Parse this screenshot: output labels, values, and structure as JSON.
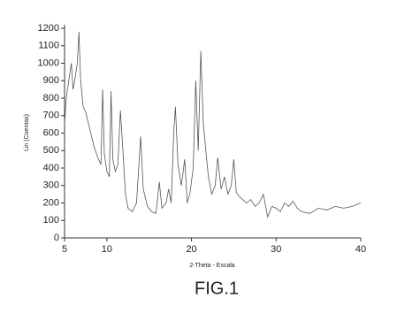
{
  "chart_data": {
    "type": "line",
    "x_label": "2-Theta - Escala",
    "y_label": "Lin (Cuentas)",
    "caption": "FIG.1",
    "xlim": [
      5,
      40
    ],
    "xticks": [
      5,
      10,
      20,
      30,
      40
    ],
    "ylim": [
      0,
      1200
    ],
    "yticks": [
      0,
      100,
      200,
      300,
      400,
      500,
      600,
      700,
      800,
      900,
      1000,
      1100,
      1200
    ],
    "color": "#555555",
    "x": [
      5.0,
      5.2,
      5.5,
      5.8,
      6.0,
      6.2,
      6.5,
      6.7,
      6.9,
      7.2,
      7.5,
      8.0,
      8.5,
      9.0,
      9.3,
      9.5,
      9.7,
      10.0,
      10.3,
      10.5,
      10.7,
      11.0,
      11.3,
      11.6,
      11.9,
      12.2,
      12.5,
      13.0,
      13.5,
      14.0,
      14.3,
      14.8,
      15.3,
      15.8,
      16.2,
      16.5,
      17.0,
      17.3,
      17.6,
      17.9,
      18.1,
      18.4,
      18.8,
      19.2,
      19.5,
      19.8,
      20.2,
      20.5,
      20.8,
      21.1,
      21.4,
      21.7,
      22.0,
      22.4,
      22.8,
      23.1,
      23.5,
      23.9,
      24.3,
      24.7,
      25.0,
      25.3,
      25.8,
      26.5,
      27.0,
      27.5,
      28.0,
      28.5,
      29.0,
      29.5,
      30.0,
      30.5,
      31.0,
      31.5,
      32.0,
      32.5,
      33.0,
      34.0,
      35.0,
      36.0,
      37.0,
      38.0,
      39.0,
      40.0
    ],
    "series": [
      {
        "values": [
          650,
          800,
          900,
          1000,
          850,
          900,
          1000,
          1180,
          900,
          750,
          720,
          620,
          520,
          450,
          420,
          850,
          480,
          380,
          350,
          840,
          450,
          380,
          420,
          730,
          500,
          250,
          170,
          150,
          200,
          580,
          280,
          180,
          150,
          140,
          320,
          170,
          200,
          280,
          200,
          600,
          750,
          420,
          300,
          450,
          200,
          250,
          400,
          900,
          500,
          1070,
          650,
          500,
          350,
          250,
          300,
          460,
          280,
          350,
          250,
          300,
          450,
          260,
          230,
          200,
          220,
          180,
          200,
          250,
          120,
          180,
          170,
          150,
          200,
          180,
          210,
          170,
          150,
          140,
          170,
          160,
          180,
          170,
          180,
          200
        ]
      }
    ]
  }
}
